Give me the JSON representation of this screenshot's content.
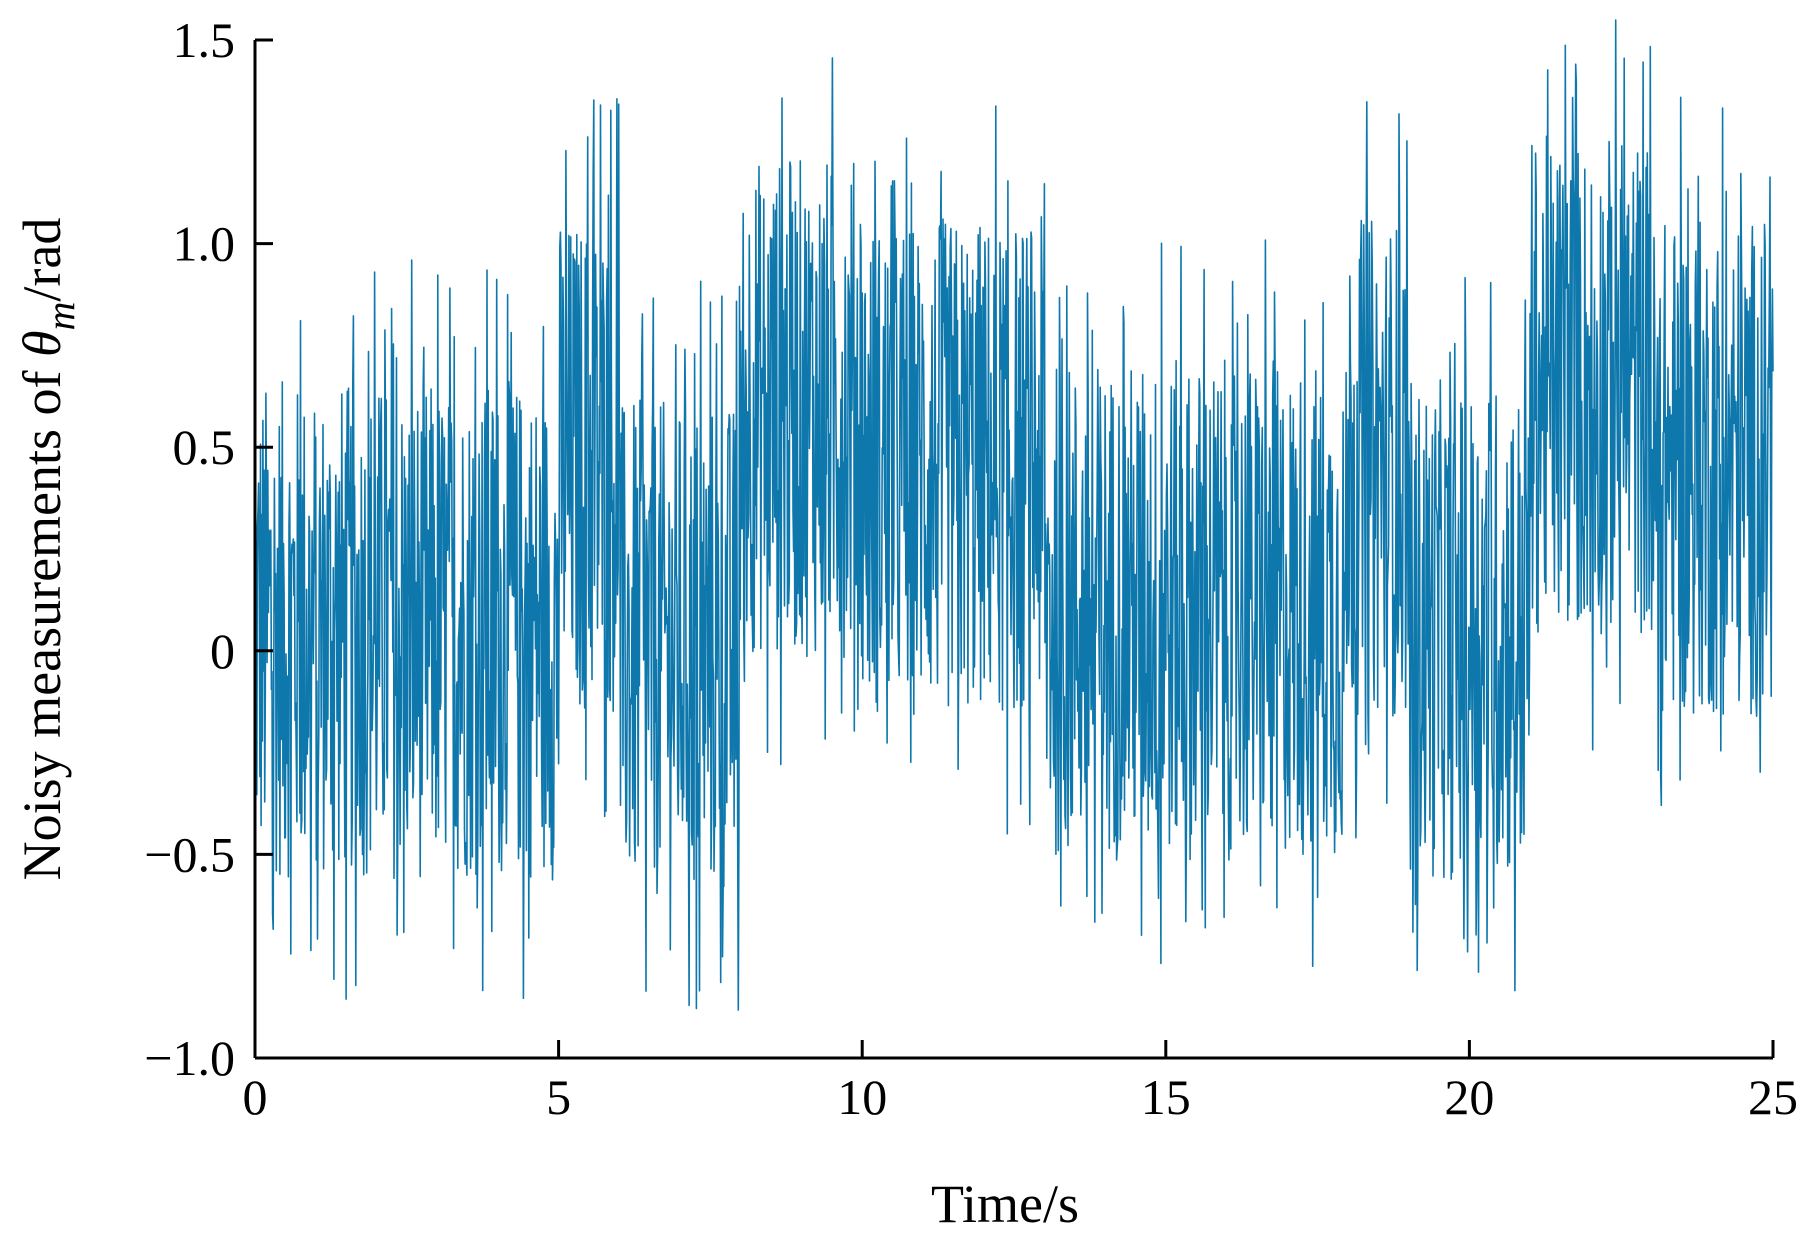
{
  "chart_data": {
    "type": "line",
    "xlabel": "Time/s",
    "ylabel": {
      "prefix": "Noisy measurements of ",
      "symbol": "θ",
      "subscript": "m",
      "suffix": "/rad"
    },
    "xlim": [
      0,
      25
    ],
    "ylim": [
      -1.0,
      1.5
    ],
    "x_ticks": [
      0,
      5,
      10,
      15,
      20,
      25
    ],
    "x_tick_labels": [
      "0",
      "5",
      "10",
      "15",
      "20",
      "25"
    ],
    "y_ticks": [
      -1.0,
      -0.5,
      0,
      0.5,
      1.0,
      1.5
    ],
    "y_tick_labels": [
      "−1.0",
      "−0.5",
      "0",
      "0.5",
      "1.0",
      "1.5"
    ],
    "grid": false,
    "legend": "none",
    "series": [
      {
        "color": "#0e78ad",
        "noise_band_half_width": 0.7,
        "sampling_interval": 0.01,
        "envelope_segments": [
          {
            "x_start": 0,
            "x_end": 5,
            "center": 0.05
          },
          {
            "x_start": 5,
            "x_end": 6,
            "center": 0.45
          },
          {
            "x_start": 6,
            "x_end": 8,
            "center": 0.0
          },
          {
            "x_start": 8,
            "x_end": 10,
            "center": 0.6
          },
          {
            "x_start": 10,
            "x_end": 13,
            "center": 0.45
          },
          {
            "x_start": 13,
            "x_end": 18,
            "center": 0.1
          },
          {
            "x_start": 18,
            "x_end": 19,
            "center": 0.45
          },
          {
            "x_start": 19,
            "x_end": 21,
            "center": 0.05
          },
          {
            "x_start": 21,
            "x_end": 23,
            "center": 0.65
          },
          {
            "x_start": 23,
            "x_end": 25,
            "center": 0.45
          }
        ],
        "extremes": {
          "min": -0.99,
          "max": 1.56
        }
      }
    ]
  }
}
